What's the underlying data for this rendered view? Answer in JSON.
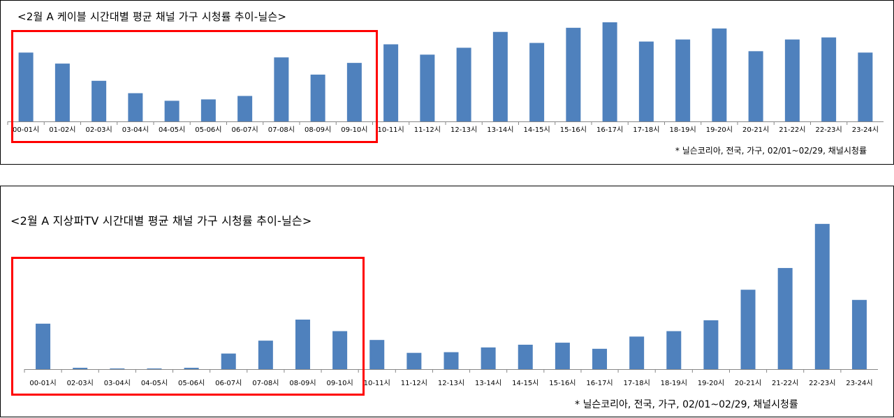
{
  "chart_data": [
    {
      "type": "bar",
      "title": "<2월 A 케이블 시간대별 평균 채널 가구 시청률 추이-닐슨>",
      "note": "* 닐슨코리아, 전국, 가구, 02/01~02/29, 채널시청률",
      "categories": [
        "00-01시",
        "01-02시",
        "02-03시",
        "03-04시",
        "04-05시",
        "05-06시",
        "06-07시",
        "07-08시",
        "08-09시",
        "09-10시",
        "10-11시",
        "11-12시",
        "12-13시",
        "13-14시",
        "14-15시",
        "15-16시",
        "16-17시",
        "17-18시",
        "18-19시",
        "19-20시",
        "20-21시",
        "21-22시",
        "22-23시",
        "23-24시"
      ],
      "values": [
        100,
        84,
        59,
        41,
        30,
        32,
        37,
        93,
        68,
        85,
        112,
        97,
        107,
        130,
        114,
        136,
        144,
        116,
        119,
        135,
        102,
        119,
        122,
        100
      ],
      "ylim": [
        0,
        150
      ],
      "color": "#4f81bd",
      "highlight_range": [
        "00-01시",
        "09-10시"
      ],
      "highlight_color": "#ff0000",
      "grid": false,
      "legend": "none"
    },
    {
      "type": "bar",
      "title": "<2월 A 지상파TV 시간대별 평균 채널 가구 시청률 추이-닐슨>",
      "note": "* 닐슨코리아, 전국, 가구, 02/01~02/29, 채널시청률",
      "categories": [
        "00-01시",
        "02-03시",
        "03-04시",
        "04-05시",
        "05-06시",
        "06-07시",
        "07-08시",
        "08-09시",
        "09-10시",
        "10-11시",
        "11-12시",
        "12-13시",
        "13-14시",
        "14-15시",
        "15-16시",
        "16-17시",
        "17-18시",
        "18-19시",
        "19-20시",
        "20-21시",
        "21-22시",
        "22-23시",
        "23-24시"
      ],
      "values": [
        67,
        2,
        1,
        1,
        2,
        23,
        42,
        73,
        56,
        43,
        24,
        25,
        32,
        36,
        39,
        30,
        48,
        56,
        72,
        117,
        149,
        214,
        102
      ],
      "ylim": [
        0,
        220
      ],
      "color": "#4f81bd",
      "highlight_range": [
        "00-01시",
        "09-10시"
      ],
      "highlight_color": "#ff0000",
      "grid": false,
      "legend": "none"
    }
  ]
}
